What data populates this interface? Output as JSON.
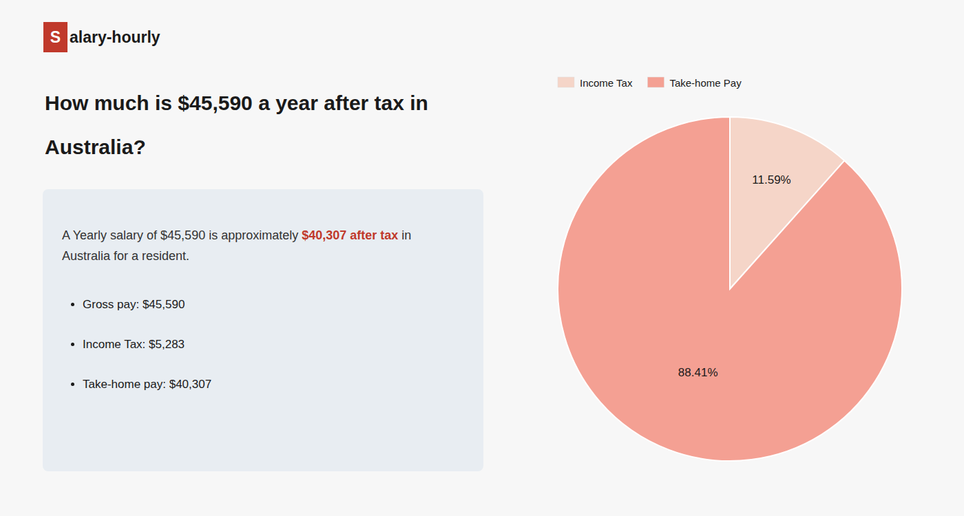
{
  "chart_data": {
    "type": "pie",
    "title": [
      "How much is $45,590 a year after tax in",
      "Australia?"
    ],
    "annotations": [
      {
        "text": "S",
        "color": "#c0392b"
      },
      {
        "text": "alary-hourly"
      },
      {
        "text": "A Yearly salary of $45,590 is approximately "
      },
      {
        "text": "$40,307 after tax",
        "color": "#c0392b"
      },
      {
        "text": " in"
      },
      {
        "text": "Australia for a resident."
      },
      {
        "text": "Gross pay: $45,590"
      },
      {
        "text": "Income Tax: $5,283"
      },
      {
        "text": "Take-home pay: $40,307"
      }
    ],
    "categories": [
      "Income Tax",
      "Take-home Pay"
    ],
    "values": [
      11.59,
      88.41
    ],
    "value_labels": [
      "11.59%",
      "88.41%"
    ],
    "colors": [
      "#f5d5c8",
      "#f4a093"
    ],
    "data_labels": true,
    "legend": "top-left"
  }
}
